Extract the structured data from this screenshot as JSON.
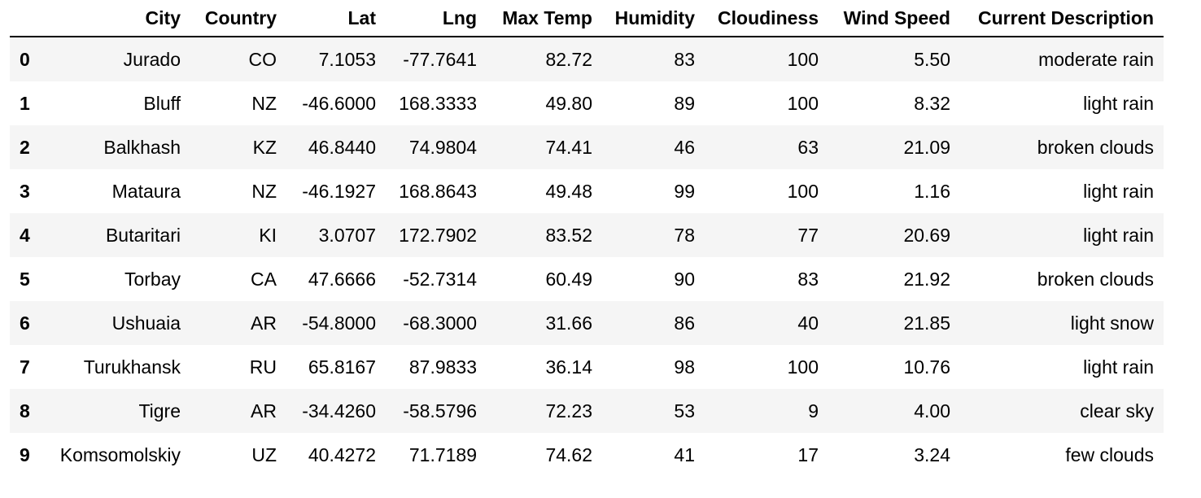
{
  "table": {
    "columns": [
      "",
      "City",
      "Country",
      "Lat",
      "Lng",
      "Max Temp",
      "Humidity",
      "Cloudiness",
      "Wind Speed",
      "Current Description"
    ],
    "rows": [
      {
        "index": "0",
        "city": "Jurado",
        "country": "CO",
        "lat": "7.1053",
        "lng": "-77.7641",
        "max_temp": "82.72",
        "humidity": "83",
        "cloudiness": "100",
        "wind_speed": "5.50",
        "description": "moderate rain"
      },
      {
        "index": "1",
        "city": "Bluff",
        "country": "NZ",
        "lat": "-46.6000",
        "lng": "168.3333",
        "max_temp": "49.80",
        "humidity": "89",
        "cloudiness": "100",
        "wind_speed": "8.32",
        "description": "light rain"
      },
      {
        "index": "2",
        "city": "Balkhash",
        "country": "KZ",
        "lat": "46.8440",
        "lng": "74.9804",
        "max_temp": "74.41",
        "humidity": "46",
        "cloudiness": "63",
        "wind_speed": "21.09",
        "description": "broken clouds"
      },
      {
        "index": "3",
        "city": "Mataura",
        "country": "NZ",
        "lat": "-46.1927",
        "lng": "168.8643",
        "max_temp": "49.48",
        "humidity": "99",
        "cloudiness": "100",
        "wind_speed": "1.16",
        "description": "light rain"
      },
      {
        "index": "4",
        "city": "Butaritari",
        "country": "KI",
        "lat": "3.0707",
        "lng": "172.7902",
        "max_temp": "83.52",
        "humidity": "78",
        "cloudiness": "77",
        "wind_speed": "20.69",
        "description": "light rain"
      },
      {
        "index": "5",
        "city": "Torbay",
        "country": "CA",
        "lat": "47.6666",
        "lng": "-52.7314",
        "max_temp": "60.49",
        "humidity": "90",
        "cloudiness": "83",
        "wind_speed": "21.92",
        "description": "broken clouds"
      },
      {
        "index": "6",
        "city": "Ushuaia",
        "country": "AR",
        "lat": "-54.8000",
        "lng": "-68.3000",
        "max_temp": "31.66",
        "humidity": "86",
        "cloudiness": "40",
        "wind_speed": "21.85",
        "description": "light snow"
      },
      {
        "index": "7",
        "city": "Turukhansk",
        "country": "RU",
        "lat": "65.8167",
        "lng": "87.9833",
        "max_temp": "36.14",
        "humidity": "98",
        "cloudiness": "100",
        "wind_speed": "10.76",
        "description": "light rain"
      },
      {
        "index": "8",
        "city": "Tigre",
        "country": "AR",
        "lat": "-34.4260",
        "lng": "-58.5796",
        "max_temp": "72.23",
        "humidity": "53",
        "cloudiness": "9",
        "wind_speed": "4.00",
        "description": "clear sky"
      },
      {
        "index": "9",
        "city": "Komsomolskiy",
        "country": "UZ",
        "lat": "40.4272",
        "lng": "71.7189",
        "max_temp": "74.62",
        "humidity": "41",
        "cloudiness": "17",
        "wind_speed": "3.24",
        "description": "few clouds"
      }
    ]
  },
  "colors": {
    "stripe": "#f5f5f5",
    "background": "#ffffff",
    "text": "#000000",
    "header_rule": "#000000"
  }
}
